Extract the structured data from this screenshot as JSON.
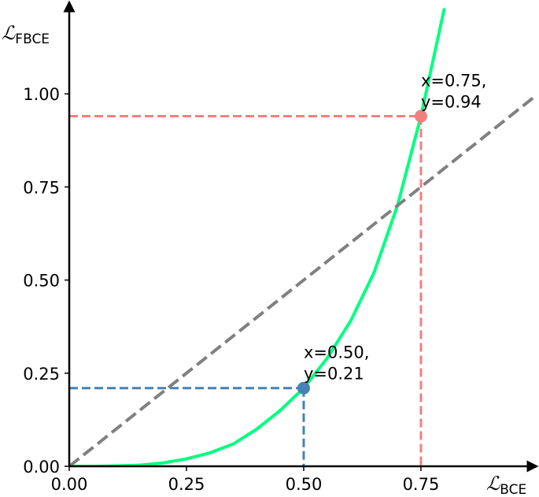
{
  "chart_data": {
    "type": "line",
    "x_label": {
      "symbol": "ℒ",
      "subscript": "BCE"
    },
    "y_label": {
      "symbol": "ℒ",
      "subscript": "FBCE"
    },
    "xlim": [
      0,
      0.985
    ],
    "ylim": [
      0,
      1.235
    ],
    "xticks": [
      {
        "value": 0,
        "label": "0.00"
      },
      {
        "value": 0.25,
        "label": "0.25"
      },
      {
        "value": 0.5,
        "label": "0.50"
      },
      {
        "value": 0.75,
        "label": "0.75"
      }
    ],
    "yticks": [
      {
        "value": 0,
        "label": "0.00"
      },
      {
        "value": 0.25,
        "label": "0.25"
      },
      {
        "value": 0.5,
        "label": "0.50"
      },
      {
        "value": 0.75,
        "label": "0.75"
      },
      {
        "value": 1.0,
        "label": "1.00"
      }
    ],
    "grid": false,
    "series": [
      {
        "color": "#00ff7f",
        "dashed": false,
        "x": [
          0,
          0.05,
          0.1,
          0.15,
          0.2,
          0.25,
          0.3,
          0.35,
          0.4,
          0.45,
          0.5,
          0.55,
          0.6,
          0.65,
          0.7,
          0.75,
          0.8
        ],
        "values": [
          0,
          0,
          0.001,
          0.003,
          0.009,
          0.02,
          0.036,
          0.06,
          0.1,
          0.15,
          0.21,
          0.29,
          0.39,
          0.52,
          0.7,
          0.94,
          1.23
        ]
      },
      {
        "color": "#808080",
        "dashed": true,
        "x": [
          0,
          0.99
        ],
        "values": [
          0,
          0.99
        ]
      }
    ],
    "points": [
      {
        "x": 0.5,
        "y": 0.21,
        "color": "#4682b4",
        "label": [
          "x=0.50,",
          "y=0.21"
        ]
      },
      {
        "x": 0.75,
        "y": 0.94,
        "color": "#f08080",
        "label": [
          "x=0.75,",
          "y=0.94"
        ]
      }
    ]
  }
}
